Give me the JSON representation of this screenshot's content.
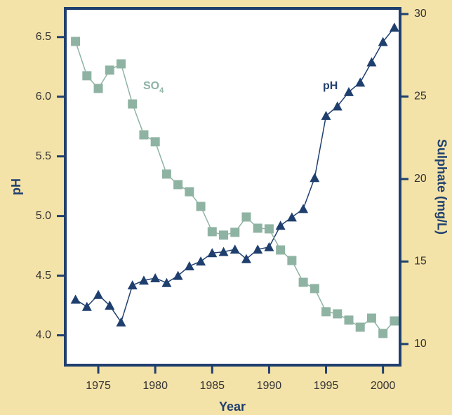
{
  "chart_data": {
    "type": "line",
    "x_label": "Year",
    "y_label": "pH",
    "y2_label": "Sulphate (mg/L)",
    "x": [
      1973,
      1974,
      1975,
      1976,
      1977,
      1978,
      1979,
      1980,
      1981,
      1982,
      1983,
      1984,
      1985,
      1986,
      1987,
      1988,
      1989,
      1990,
      1991,
      1992,
      1993,
      1994,
      1995,
      1996,
      1997,
      1998,
      1999,
      2000,
      2001
    ],
    "series": [
      {
        "name": "pH",
        "color": "#1f3f6e",
        "marker": "triangle",
        "axis": "y",
        "values": [
          4.3,
          4.24,
          4.34,
          4.25,
          4.11,
          4.42,
          4.46,
          4.48,
          4.44,
          4.5,
          4.58,
          4.62,
          4.69,
          4.7,
          4.72,
          4.64,
          4.72,
          4.74,
          4.92,
          4.99,
          5.06,
          5.32,
          5.84,
          5.92,
          6.04,
          6.12,
          6.29,
          6.46,
          6.58
        ]
      },
      {
        "name": "SO",
        "subscript": "4",
        "color": "#8fb3a3",
        "marker": "square",
        "axis": "y2",
        "values": [
          28.34,
          26.26,
          25.49,
          26.6,
          26.98,
          24.55,
          22.68,
          22.26,
          20.3,
          19.66,
          19.23,
          18.34,
          16.81,
          16.6,
          16.77,
          17.7,
          17.02,
          16.98,
          15.7,
          15.06,
          13.74,
          13.36,
          11.96,
          11.83,
          11.45,
          11.02,
          11.57,
          10.64,
          11.4
        ]
      }
    ],
    "xlim": [
      1972.1,
      2001.5
    ],
    "xticks": [
      1975,
      1980,
      1985,
      1990,
      1995,
      2000
    ],
    "ylim": [
      3.75,
      6.74
    ],
    "yticks": [
      {
        "value": 4,
        "label": "4.0"
      },
      4.5,
      {
        "value": 5,
        "label": "5.0"
      },
      5.5,
      {
        "value": 6,
        "label": "6.0"
      },
      6.5
    ],
    "y2lim": [
      8.72,
      30.34
    ],
    "y2ticks": [
      10,
      15,
      20,
      25,
      30
    ]
  }
}
